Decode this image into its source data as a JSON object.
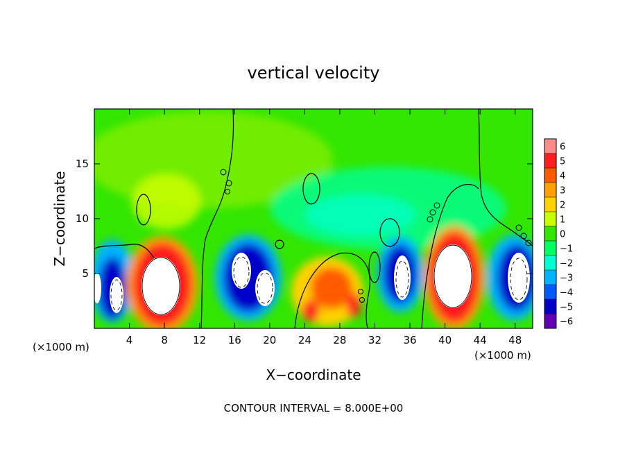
{
  "chart_data": {
    "type": "heatmap",
    "title": "vertical velocity",
    "xlabel": "X−coordinate",
    "ylabel": "Z−coordinate",
    "x_unit_left": "(×1000 m)",
    "x_unit_right": "(×1000 m)",
    "footer": "CONTOUR INTERVAL = 8.000E+00",
    "xlim": [
      0,
      50
    ],
    "ylim": [
      0,
      20
    ],
    "x_ticks": [
      4,
      8,
      12,
      16,
      20,
      24,
      28,
      32,
      36,
      40,
      44,
      48
    ],
    "y_ticks": [
      5,
      10,
      15
    ],
    "colorbar": {
      "levels": [
        6,
        5,
        4,
        3,
        2,
        1,
        0,
        -1,
        -2,
        -3,
        -4,
        -5,
        -6
      ],
      "colors": [
        "#ff8c8c",
        "#ff1e1e",
        "#ff5a00",
        "#ffa000",
        "#ffd200",
        "#c8ff00",
        "#32e600",
        "#00ff64",
        "#00ffd2",
        "#00b4ff",
        "#005aff",
        "#0000c8",
        "#6400b4"
      ]
    },
    "features": [
      {
        "type": "updraft",
        "x": 7.5,
        "z": 4.5,
        "amplitude": 6
      },
      {
        "type": "updraft",
        "x": 41,
        "z": 5,
        "amplitude": 6
      },
      {
        "type": "updraft",
        "x": 27.5,
        "z": 3.5,
        "amplitude": 3
      },
      {
        "type": "updraft",
        "x": 25,
        "z": 1.5,
        "amplitude": 4
      },
      {
        "type": "updraft",
        "x": 30,
        "z": 2,
        "amplitude": 3
      },
      {
        "type": "downdraft",
        "x": 2.5,
        "z": 3,
        "amplitude": -6
      },
      {
        "type": "downdraft",
        "x": 16.5,
        "z": 5,
        "amplitude": -6
      },
      {
        "type": "downdraft",
        "x": 19.5,
        "z": 3.5,
        "amplitude": -6
      },
      {
        "type": "downdraft",
        "x": 35,
        "z": 5,
        "amplitude": -6
      },
      {
        "type": "downdraft",
        "x": 47.5,
        "z": 5,
        "amplitude": -6
      }
    ],
    "colors": {
      "frame": "#000000",
      "background": "#ffffff"
    }
  }
}
